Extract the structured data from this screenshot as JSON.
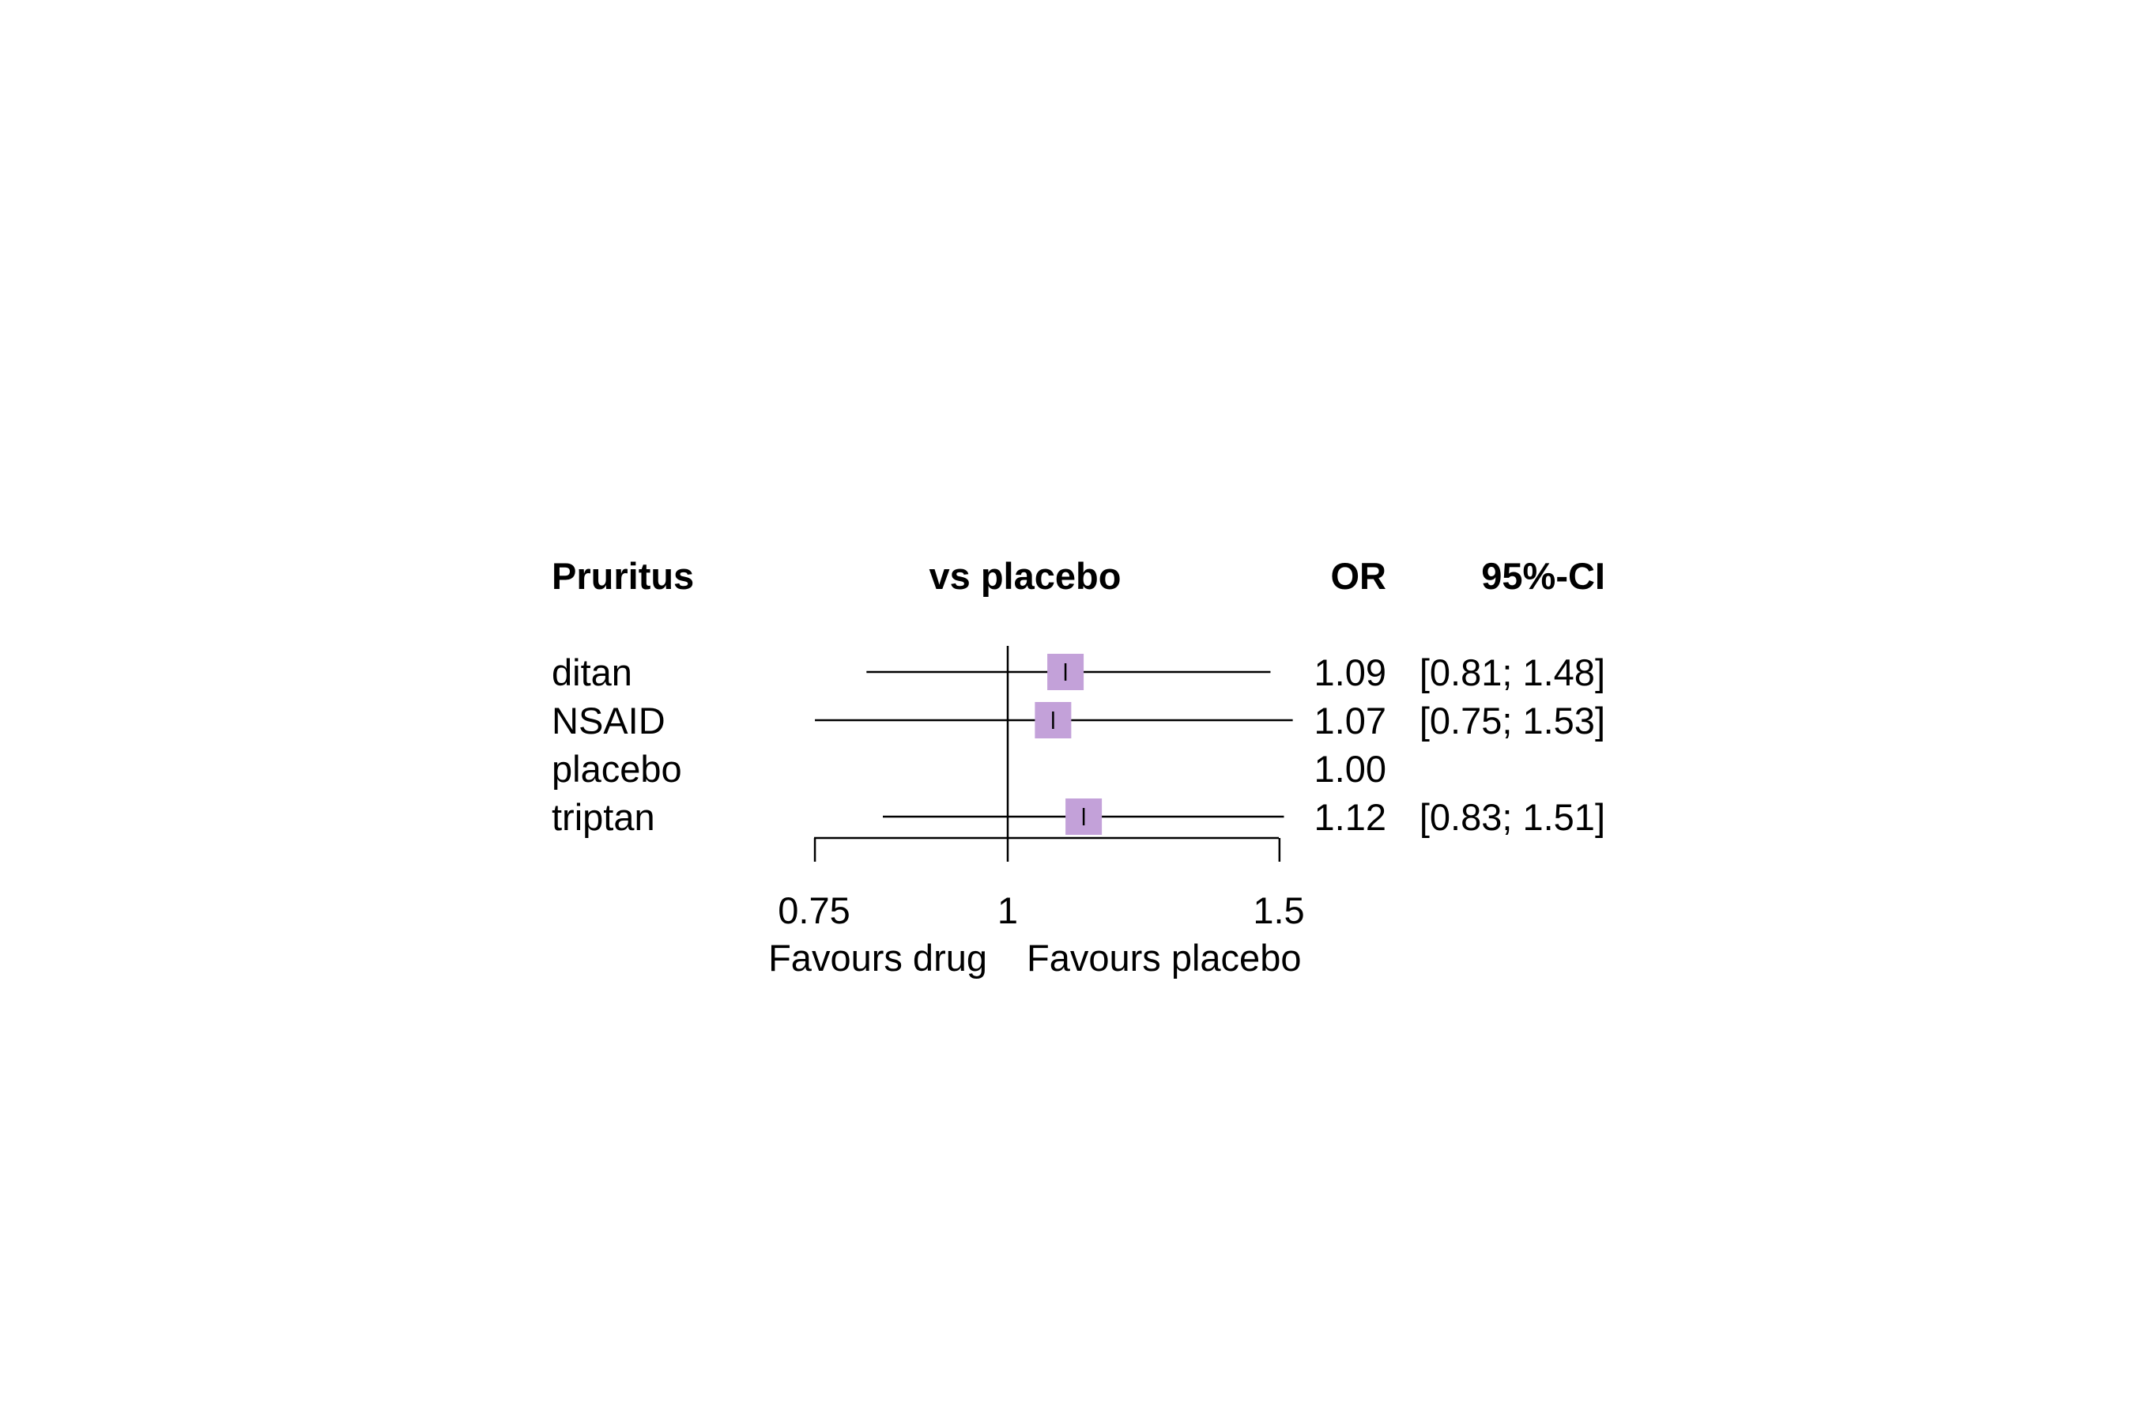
{
  "chart_data": {
    "type": "forest",
    "header": {
      "outcome": "Pruritus",
      "comparison": "vs placebo",
      "estimate": "OR",
      "ci": "95%-CI"
    },
    "rows": [
      {
        "label": "ditan",
        "or": 1.09,
        "ci_low": 0.81,
        "ci_high": 1.48,
        "or_text": "1.09",
        "ci_text": "[0.81; 1.48]"
      },
      {
        "label": "NSAID",
        "or": 1.07,
        "ci_low": 0.75,
        "ci_high": 1.53,
        "or_text": "1.07",
        "ci_text": "[0.75; 1.53]"
      },
      {
        "label": "placebo",
        "or": 1.0,
        "ci_low": null,
        "ci_high": null,
        "or_text": "1.00",
        "ci_text": ""
      },
      {
        "label": "triptan",
        "or": 1.12,
        "ci_low": 0.83,
        "ci_high": 1.51,
        "or_text": "1.12",
        "ci_text": "[0.83; 1.51]"
      }
    ],
    "x_axis": {
      "scale": "log",
      "ticks": [
        0.75,
        1,
        1.5
      ],
      "tick_labels": [
        "0.75",
        "1",
        "1.5"
      ],
      "reference_line": 1
    },
    "favours_left": "Favours drug",
    "favours_right": "Favours placebo",
    "colors": {
      "box": "#c3a1d9",
      "line": "#000000"
    }
  }
}
